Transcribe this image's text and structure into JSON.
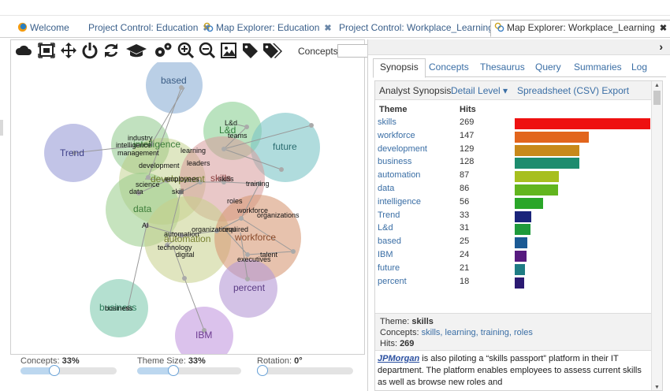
{
  "tabs": [
    {
      "label": "Welcome",
      "closable": false,
      "icon": "welcome-logo-icon"
    },
    {
      "label": "Project Control: Education",
      "closable": true
    },
    {
      "label": "Map Explorer: Education",
      "closable": true,
      "icon": "map-explorer-icon"
    },
    {
      "label": "Project Control: Workplace_Learning",
      "closable": true
    },
    {
      "label": "Map Explorer: Workplace_Learning",
      "closable": true,
      "icon": "map-explorer-icon",
      "active": true
    }
  ],
  "toolbar": {
    "icons": [
      "cloud-icon",
      "fit-view-icon",
      "move-icon",
      "power-icon",
      "refresh-icon",
      "graduation-cap-icon",
      "settings-icon",
      "zoom-in-icon",
      "zoom-out-icon",
      "image-export-icon",
      "tag-icon",
      "tags-icon"
    ],
    "concepts_label": "Concepts:",
    "concepts_value": ""
  },
  "map": {
    "themes": [
      {
        "name": "based",
        "color": "#8fb2d6"
      },
      {
        "name": "Trend",
        "color": "#9d9fd8"
      },
      {
        "name": "intelligence",
        "color": "#8ec98a"
      },
      {
        "name": "L&d",
        "color": "#82cc8a"
      },
      {
        "name": "future",
        "color": "#7cc4c7"
      },
      {
        "name": "development",
        "color": "#b7c97b"
      },
      {
        "name": "skills",
        "color": "#d79a9a"
      },
      {
        "name": "data",
        "color": "#98cc88"
      },
      {
        "name": "automation",
        "color": "#c6d08a"
      },
      {
        "name": "workforce",
        "color": "#d79a76"
      },
      {
        "name": "percent",
        "color": "#b59ad6"
      },
      {
        "name": "business",
        "color": "#82ccb0"
      },
      {
        "name": "IBM",
        "color": "#c39ae0"
      }
    ],
    "concepts": [
      "industry",
      "intelligence",
      "management",
      "L&d",
      "teams",
      "learning",
      "development",
      "leaders",
      "employees",
      "skills",
      "training",
      "science",
      "data",
      "skill",
      "roles",
      "workforce",
      "organizations",
      "AI",
      "automation",
      "organizational",
      "required",
      "technology",
      "digital",
      "talent",
      "executives",
      "business"
    ]
  },
  "sliders": [
    {
      "label": "Concepts:",
      "value": "33%",
      "level": 0.33
    },
    {
      "label": "Theme Size:",
      "value": "33%",
      "level": 0.33
    },
    {
      "label": "Rotation:",
      "value": "0°",
      "level": 0.0
    }
  ],
  "right_tabs": [
    "Synopsis",
    "Concepts",
    "Thesaurus",
    "Query",
    "Summaries",
    "Log"
  ],
  "synopsis": {
    "header": "Analyst Synopsis",
    "detail_level": "Detail Level ▾",
    "export": "Spreadsheet (CSV) Export",
    "col_theme": "Theme",
    "col_hits": "Hits",
    "rows": [
      {
        "theme": "skills",
        "hits": "269",
        "value": 269,
        "color": "#ee1111"
      },
      {
        "theme": "workforce",
        "hits": "147",
        "value": 147,
        "color": "#e2651d"
      },
      {
        "theme": "development",
        "hits": "129",
        "value": 129,
        "color": "#c8891a"
      },
      {
        "theme": "business",
        "hits": "128",
        "value": 128,
        "color": "#1d8c6e"
      },
      {
        "theme": "automation",
        "hits": "87",
        "value": 87,
        "color": "#a7bf1f"
      },
      {
        "theme": "data",
        "hits": "86",
        "value": 86,
        "color": "#62b51e"
      },
      {
        "theme": "intelligence",
        "hits": "56",
        "value": 56,
        "color": "#2aa629"
      },
      {
        "theme": "Trend",
        "hits": "33",
        "value": 33,
        "color": "#1a247a"
      },
      {
        "theme": "L&d",
        "hits": "31",
        "value": 31,
        "color": "#1f9a3b"
      },
      {
        "theme": "based",
        "hits": "25",
        "value": 25,
        "color": "#1b5a94"
      },
      {
        "theme": "IBM",
        "hits": "24",
        "value": 24,
        "color": "#561a7f"
      },
      {
        "theme": "future",
        "hits": "21",
        "value": 21,
        "color": "#1f7c84"
      },
      {
        "theme": "percent",
        "hits": "18",
        "value": 18,
        "color": "#2b1a72"
      }
    ],
    "detail": {
      "theme_label": "Theme:",
      "theme": "skills",
      "concepts_label": "Concepts:",
      "concepts": "skills, learning, training, roles",
      "hits_label": "Hits:",
      "hits": "269"
    },
    "excerpt": {
      "source": "JPMorgan",
      "text": " is also piloting a “skills passport” platform in their IT department. The platform enables employees to assess current skills as well as browse new roles and"
    }
  }
}
